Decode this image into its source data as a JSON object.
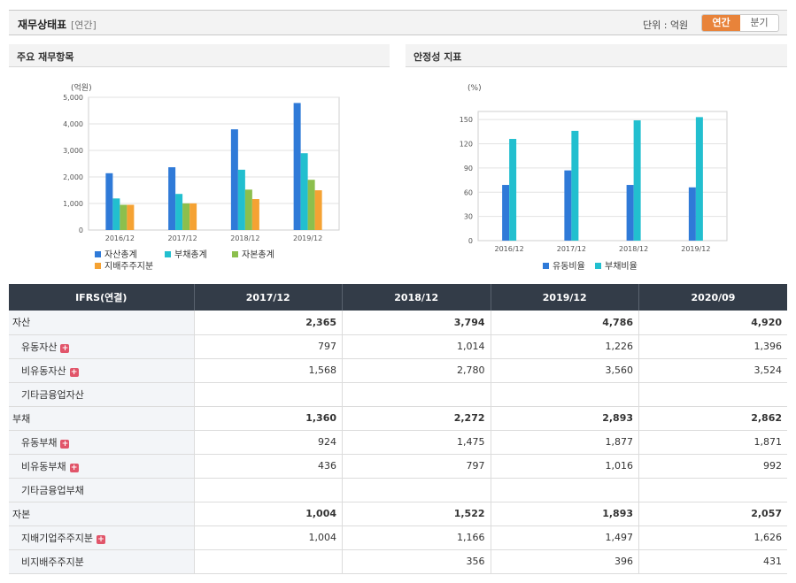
{
  "header": {
    "title": "재무상태표",
    "subtitle": "[연간]",
    "unit_label": "단위 : 억원",
    "toggle": [
      {
        "label": "연간",
        "active": true
      },
      {
        "label": "분기",
        "active": false
      }
    ]
  },
  "panels": {
    "left_title": "주요 재무항목",
    "right_title": "안정성 지표"
  },
  "colors": {
    "blue": "#2f7ad8",
    "cyan": "#22bfcf",
    "green": "#8cbf4d",
    "orange": "#f5a233",
    "header_dark": "#333c48",
    "active_toggle": "#e8833a"
  },
  "chart_data": [
    {
      "type": "bar",
      "unit": "(억원)",
      "categories": [
        "2016/12",
        "2017/12",
        "2018/12",
        "2019/12"
      ],
      "ylim": [
        0,
        5000
      ],
      "yticks": [
        0,
        1000,
        2000,
        3000,
        4000,
        5000
      ],
      "ytick_labels": [
        "0",
        "1,000",
        "2,000",
        "3,000",
        "4,000",
        "5,000"
      ],
      "grid": true,
      "legend_position": "bottom-left",
      "series": [
        {
          "name": "자산총계",
          "color": "#2f7ad8",
          "values": [
            2140,
            2365,
            3794,
            4786
          ]
        },
        {
          "name": "부채총계",
          "color": "#22bfcf",
          "values": [
            1190,
            1360,
            2272,
            2893
          ]
        },
        {
          "name": "자본총계",
          "color": "#8cbf4d",
          "values": [
            950,
            1004,
            1522,
            1893
          ]
        },
        {
          "name": "지배주주지분",
          "color": "#f5a233",
          "values": [
            950,
            1004,
            1166,
            1497
          ]
        }
      ]
    },
    {
      "type": "bar",
      "unit": "(%)",
      "categories": [
        "2016/12",
        "2017/12",
        "2018/12",
        "2019/12"
      ],
      "ylim": [
        0,
        160
      ],
      "yticks": [
        0,
        30,
        60,
        90,
        120,
        150
      ],
      "ytick_labels": [
        "0",
        "30",
        "60",
        "90",
        "120",
        "150"
      ],
      "grid": true,
      "legend_position": "bottom-center",
      "series": [
        {
          "name": "유동비율",
          "color": "#2f7ad8",
          "values": [
            69,
            87,
            69,
            66
          ]
        },
        {
          "name": "부채비율",
          "color": "#22bfcf",
          "values": [
            126,
            136,
            149,
            153
          ]
        }
      ]
    }
  ],
  "table": {
    "corner_header": "IFRS(연결)",
    "columns": [
      "2017/12",
      "2018/12",
      "2019/12",
      "2020/09"
    ],
    "rows": [
      {
        "label": "자산",
        "level": 0,
        "expand": false,
        "values": [
          "2,365",
          "3,794",
          "4,786",
          "4,920"
        ]
      },
      {
        "label": "유동자산",
        "level": 1,
        "expand": true,
        "values": [
          "797",
          "1,014",
          "1,226",
          "1,396"
        ]
      },
      {
        "label": "비유동자산",
        "level": 1,
        "expand": true,
        "values": [
          "1,568",
          "2,780",
          "3,560",
          "3,524"
        ]
      },
      {
        "label": "기타금융업자산",
        "level": 1,
        "expand": false,
        "values": [
          "",
          "",
          "",
          ""
        ]
      },
      {
        "label": "부채",
        "level": 0,
        "expand": false,
        "values": [
          "1,360",
          "2,272",
          "2,893",
          "2,862"
        ]
      },
      {
        "label": "유동부채",
        "level": 1,
        "expand": true,
        "values": [
          "924",
          "1,475",
          "1,877",
          "1,871"
        ]
      },
      {
        "label": "비유동부채",
        "level": 1,
        "expand": true,
        "values": [
          "436",
          "797",
          "1,016",
          "992"
        ]
      },
      {
        "label": "기타금융업부채",
        "level": 1,
        "expand": false,
        "values": [
          "",
          "",
          "",
          ""
        ]
      },
      {
        "label": "자본",
        "level": 0,
        "expand": false,
        "values": [
          "1,004",
          "1,522",
          "1,893",
          "2,057"
        ]
      },
      {
        "label": "지배기업주주지분",
        "level": 1,
        "expand": true,
        "values": [
          "1,004",
          "1,166",
          "1,497",
          "1,626"
        ]
      },
      {
        "label": "비지배주주지분",
        "level": 1,
        "expand": false,
        "values": [
          "",
          "356",
          "396",
          "431"
        ]
      }
    ],
    "expand_symbol": "+"
  }
}
